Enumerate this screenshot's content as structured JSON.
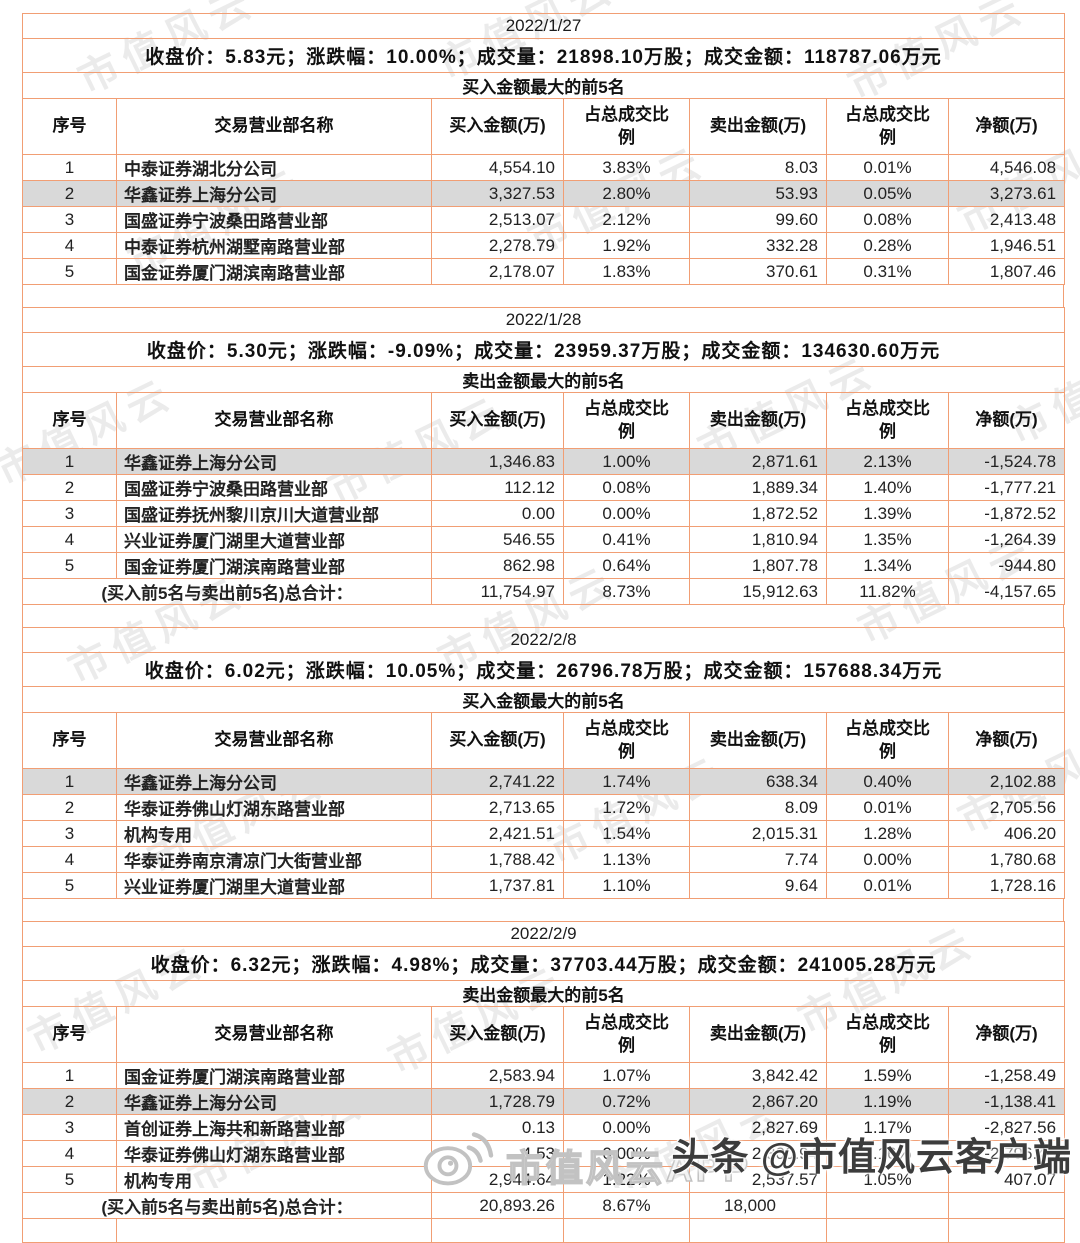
{
  "page": {
    "watermark_text": "市值风云",
    "footer_left": "市值风云APP",
    "footer_right": "头条 @市值风云客户端",
    "border_color": "#F19E74",
    "highlight_color": "#D9D9D9",
    "buy_color": "#FE0000",
    "sell_color": "#00A650"
  },
  "table": {
    "headers": [
      "序号",
      "交易营业部名称",
      "买入金额(万)",
      "占总成交比例",
      "卖出金额(万)",
      "占总成交比例",
      "净额(万)"
    ],
    "total_label": "(买入前5名与卖出前5名)总合计："
  },
  "sections": [
    {
      "date": "2022/1/27",
      "summary": "收盘价：5.83元；涨跌幅：10.00%；成交量：21898.10万股；成交金额：118787.06万元",
      "list_title": "买入金额最大的前5名",
      "rows": [
        {
          "no": "1",
          "name": "中泰证券湖北分公司",
          "buy": "4,554.10",
          "buy_pct": "3.83%",
          "sell": "8.03",
          "sell_pct": "0.01%",
          "net": "4,546.08",
          "highlight": false
        },
        {
          "no": "2",
          "name": "华鑫证券上海分公司",
          "buy": "3,327.53",
          "buy_pct": "2.80%",
          "sell": "53.93",
          "sell_pct": "0.05%",
          "net": "3,273.61",
          "highlight": true
        },
        {
          "no": "3",
          "name": "国盛证券宁波桑田路营业部",
          "buy": "2,513.07",
          "buy_pct": "2.12%",
          "sell": "99.60",
          "sell_pct": "0.08%",
          "net": "2,413.48",
          "highlight": false
        },
        {
          "no": "4",
          "name": "中泰证券杭州湖墅南路营业部",
          "buy": "2,278.79",
          "buy_pct": "1.92%",
          "sell": "332.28",
          "sell_pct": "0.28%",
          "net": "1,946.51",
          "highlight": false
        },
        {
          "no": "5",
          "name": "国金证券厦门湖滨南路营业部",
          "buy": "2,178.07",
          "buy_pct": "1.83%",
          "sell": "370.61",
          "sell_pct": "0.31%",
          "net": "1,807.46",
          "highlight": false
        }
      ],
      "total": null,
      "empty_row": false
    },
    {
      "date": "2022/1/28",
      "summary": "收盘价：5.30元；涨跌幅：-9.09%；成交量：23959.37万股；成交金额：134630.60万元",
      "list_title": "卖出金额最大的前5名",
      "rows": [
        {
          "no": "1",
          "name": "华鑫证券上海分公司",
          "buy": "1,346.83",
          "buy_pct": "1.00%",
          "sell": "2,871.61",
          "sell_pct": "2.13%",
          "net": "-1,524.78",
          "highlight": true
        },
        {
          "no": "2",
          "name": "国盛证券宁波桑田路营业部",
          "buy": "112.12",
          "buy_pct": "0.08%",
          "sell": "1,889.34",
          "sell_pct": "1.40%",
          "net": "-1,777.21",
          "highlight": false
        },
        {
          "no": "3",
          "name": "国盛证券抚州黎川京川大道营业部",
          "buy": "0.00",
          "buy_pct": "0.00%",
          "sell": "1,872.52",
          "sell_pct": "1.39%",
          "net": "-1,872.52",
          "highlight": false
        },
        {
          "no": "4",
          "name": "兴业证券厦门湖里大道营业部",
          "buy": "546.55",
          "buy_pct": "0.41%",
          "sell": "1,810.94",
          "sell_pct": "1.35%",
          "net": "-1,264.39",
          "highlight": false
        },
        {
          "no": "5",
          "name": "国金证券厦门湖滨南路营业部",
          "buy": "862.98",
          "buy_pct": "0.64%",
          "sell": "1,807.78",
          "sell_pct": "1.34%",
          "net": "-944.80",
          "highlight": false
        }
      ],
      "total": {
        "buy": "11,754.97",
        "buy_pct": "8.73%",
        "sell": "15,912.63",
        "sell_pct": "11.82%",
        "net": "-4,157.65"
      },
      "empty_row": false
    },
    {
      "date": "2022/2/8",
      "summary": "收盘价：6.02元；涨跌幅：10.05%；成交量：26796.78万股；成交金额：157688.34万元",
      "list_title": "买入金额最大的前5名",
      "rows": [
        {
          "no": "1",
          "name": "华鑫证券上海分公司",
          "buy": "2,741.22",
          "buy_pct": "1.74%",
          "sell": "638.34",
          "sell_pct": "0.40%",
          "net": "2,102.88",
          "highlight": true
        },
        {
          "no": "2",
          "name": "华泰证券佛山灯湖东路营业部",
          "buy": "2,713.65",
          "buy_pct": "1.72%",
          "sell": "8.09",
          "sell_pct": "0.01%",
          "net": "2,705.56",
          "highlight": false
        },
        {
          "no": "3",
          "name": "机构专用",
          "buy": "2,421.51",
          "buy_pct": "1.54%",
          "sell": "2,015.31",
          "sell_pct": "1.28%",
          "net": "406.20",
          "highlight": false
        },
        {
          "no": "4",
          "name": "华泰证券南京清凉门大街营业部",
          "buy": "1,788.42",
          "buy_pct": "1.13%",
          "sell": "7.74",
          "sell_pct": "0.00%",
          "net": "1,780.68",
          "highlight": false
        },
        {
          "no": "5",
          "name": "兴业证券厦门湖里大道营业部",
          "buy": "1,737.81",
          "buy_pct": "1.10%",
          "sell": "9.64",
          "sell_pct": "0.01%",
          "net": "1,728.16",
          "highlight": false
        }
      ],
      "total": null,
      "empty_row": false
    },
    {
      "date": "2022/2/9",
      "summary": "收盘价：6.32元；涨跌幅：4.98%；成交量：37703.44万股；成交金额：241005.28万元",
      "list_title": "卖出金额最大的前5名",
      "rows": [
        {
          "no": "1",
          "name": "国金证券厦门湖滨南路营业部",
          "buy": "2,583.94",
          "buy_pct": "1.07%",
          "sell": "3,842.42",
          "sell_pct": "1.59%",
          "net": "-1,258.49",
          "highlight": false
        },
        {
          "no": "2",
          "name": "华鑫证券上海分公司",
          "buy": "1,728.79",
          "buy_pct": "0.72%",
          "sell": "2,867.20",
          "sell_pct": "1.19%",
          "net": "-1,138.41",
          "highlight": true
        },
        {
          "no": "3",
          "name": "首创证券上海共和新路营业部",
          "buy": "0.13",
          "buy_pct": "0.00%",
          "sell": "2,827.69",
          "sell_pct": "1.17%",
          "net": "-2,827.56",
          "highlight": false
        },
        {
          "no": "4",
          "name": "华泰证券佛山灯湖东路营业部",
          "buy": "4.53",
          "buy_pct": "0.00%",
          "sell": "2,800.94",
          "sell_pct": "1.16%",
          "net": "-2,796.40",
          "highlight": false
        },
        {
          "no": "5",
          "name": "机构专用",
          "buy": "2,944.64",
          "buy_pct": "1.22%",
          "sell": "2,537.57",
          "sell_pct": "1.05%",
          "net": "407.07",
          "highlight": false
        }
      ],
      "total": {
        "buy": "20,893.26",
        "buy_pct": "8.67%",
        "sell": "18,000",
        "sell_pct": "",
        "net": ""
      },
      "empty_row": true
    }
  ]
}
